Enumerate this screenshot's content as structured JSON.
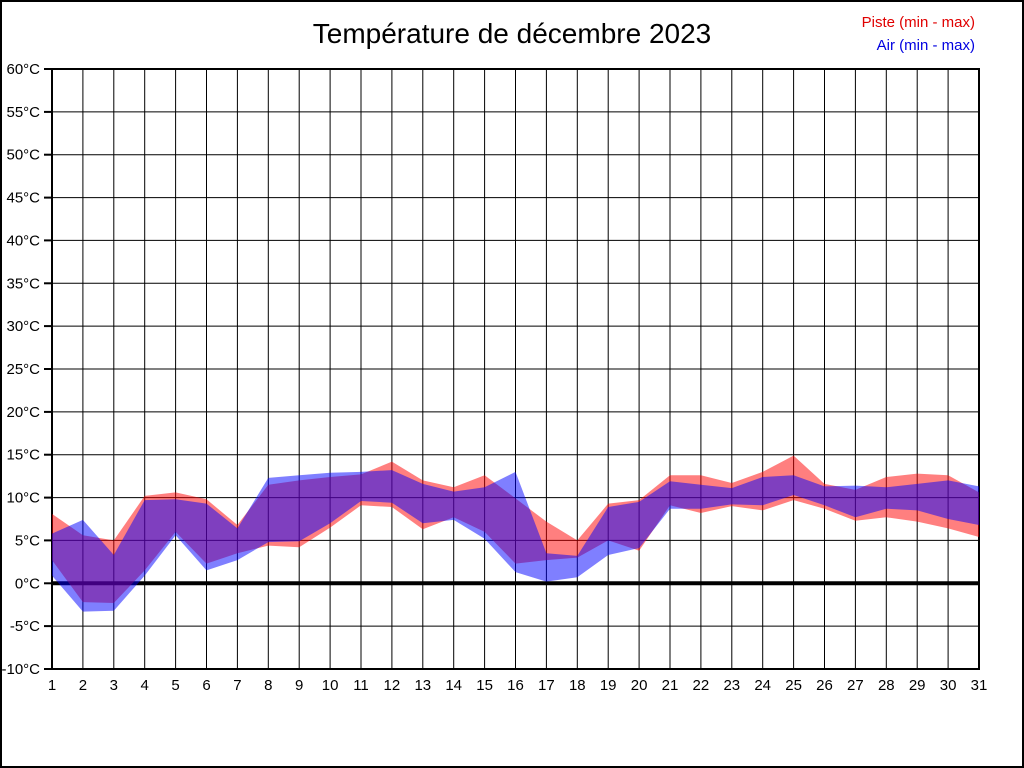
{
  "page": {
    "title": "Température de décembre 2023"
  },
  "legend": [
    {
      "label": "Piste (min - max)",
      "color": "#e00000"
    },
    {
      "label": "Air (min - max)",
      "color": "#0000e0"
    }
  ],
  "chart_data": {
    "type": "area",
    "subtype": "min-max-range-bands",
    "title": "Température de décembre 2023",
    "xlabel": "",
    "ylabel": "°C",
    "x": [
      1,
      2,
      3,
      4,
      5,
      6,
      7,
      8,
      9,
      10,
      11,
      12,
      13,
      14,
      15,
      16,
      17,
      18,
      19,
      20,
      21,
      22,
      23,
      24,
      25,
      26,
      27,
      28,
      29,
      30,
      31
    ],
    "ylim": [
      -10,
      60
    ],
    "yticks": [
      60,
      55,
      50,
      45,
      40,
      35,
      30,
      25,
      20,
      15,
      10,
      5,
      0,
      -5,
      -10
    ],
    "ytick_suffix": "°C",
    "grid": true,
    "zero_line": true,
    "legend_position": "top-right",
    "series": [
      {
        "id": "piste",
        "name": "Piste (min - max)",
        "color": "#ff0000",
        "opacity": 0.5,
        "min": [
          2.7,
          -2.2,
          -2.3,
          1.5,
          6.0,
          2.3,
          3.5,
          4.4,
          4.2,
          6.5,
          9.1,
          8.9,
          6.3,
          7.7,
          6.0,
          2.3,
          2.7,
          3.0,
          5.0,
          3.8,
          9.1,
          8.2,
          9.0,
          8.5,
          9.7,
          8.7,
          7.3,
          7.7,
          7.2,
          6.4,
          5.4
        ],
        "max": [
          8.1,
          5.6,
          5.0,
          10.2,
          10.6,
          9.8,
          6.8,
          11.5,
          12.0,
          12.4,
          12.7,
          14.2,
          12.0,
          11.2,
          12.6,
          9.9,
          7.2,
          5.0,
          9.3,
          9.7,
          12.6,
          12.6,
          11.7,
          13.0,
          14.9,
          11.6,
          10.9,
          12.4,
          12.8,
          12.6,
          10.6
        ]
      },
      {
        "id": "air",
        "name": "Air (min - max)",
        "color": "#0000ff",
        "opacity": 0.5,
        "min": [
          0.9,
          -3.3,
          -3.2,
          0.9,
          5.6,
          1.5,
          2.7,
          4.8,
          4.9,
          7.0,
          9.6,
          9.4,
          7.0,
          7.4,
          5.2,
          1.3,
          0.2,
          0.7,
          3.3,
          4.1,
          8.7,
          8.7,
          9.2,
          9.1,
          10.3,
          9.1,
          7.7,
          8.7,
          8.5,
          7.5,
          6.8
        ],
        "max": [
          5.8,
          7.4,
          3.3,
          9.7,
          9.8,
          9.3,
          6.4,
          12.3,
          12.6,
          12.9,
          13.0,
          13.2,
          11.6,
          10.7,
          11.2,
          13.0,
          3.5,
          3.2,
          8.9,
          9.5,
          11.9,
          11.5,
          11.1,
          12.4,
          12.6,
          11.3,
          11.4,
          11.2,
          11.6,
          12.0,
          11.3
        ]
      }
    ]
  }
}
